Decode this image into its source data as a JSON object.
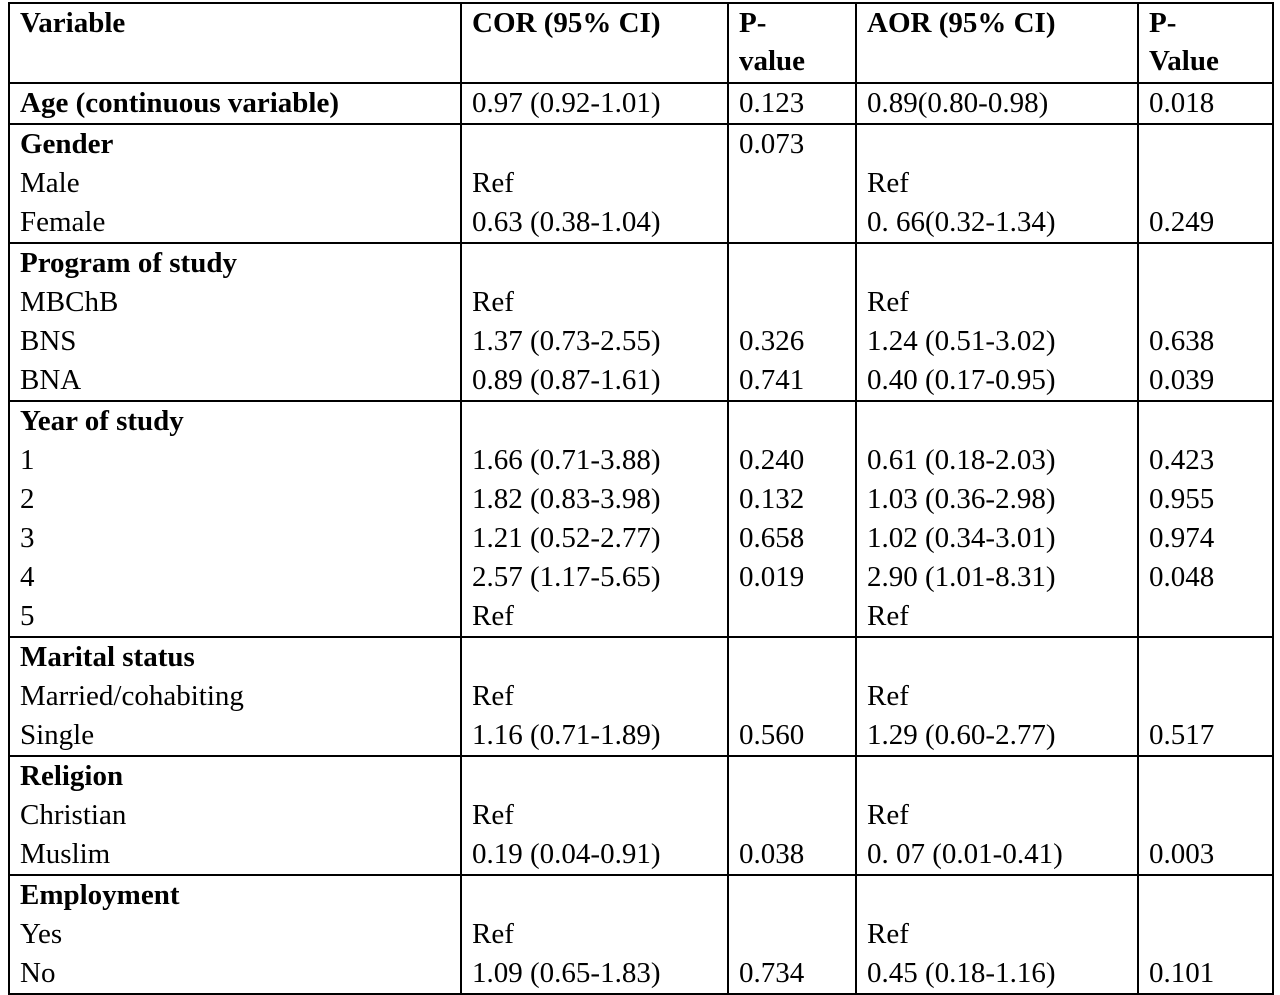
{
  "table": {
    "header": [
      "Variable",
      "COR (95% CI)",
      "P-value",
      "AOR (95% CI)",
      "P-Value"
    ],
    "groups": [
      [
        [
          "Age (continuous variable)",
          "0.97 (0.92-1.01)",
          "0.123",
          "0.89(0.80-0.98)",
          "0.018"
        ]
      ],
      [
        [
          "Gender",
          null,
          "0.073",
          null,
          null
        ],
        [
          "Male",
          "Ref",
          null,
          "Ref",
          null
        ],
        [
          "Female",
          "0.63 (0.38-1.04)",
          null,
          "0. 66(0.32-1.34)",
          "0.249"
        ]
      ],
      [
        [
          "Program of study",
          null,
          null,
          null,
          null
        ],
        [
          "MBChB",
          "Ref",
          null,
          "Ref",
          null
        ],
        [
          "BNS",
          "1.37 (0.73-2.55)",
          "0.326",
          "1.24 (0.51-3.02)",
          "0.638"
        ],
        [
          "BNA",
          "0.89 (0.87-1.61)",
          "0.741",
          "0.40 (0.17-0.95)",
          "0.039"
        ]
      ],
      [
        [
          "Year of study",
          null,
          null,
          null,
          null
        ],
        [
          "1",
          "1.66 (0.71-3.88)",
          "0.240",
          "0.61 (0.18-2.03)",
          "0.423"
        ],
        [
          "2",
          "1.82 (0.83-3.98)",
          "0.132",
          "1.03 (0.36-2.98)",
          "0.955"
        ],
        [
          "3",
          "1.21 (0.52-2.77)",
          "0.658",
          "1.02 (0.34-3.01)",
          "0.974"
        ],
        [
          "4",
          "2.57 (1.17-5.65)",
          "0.019",
          "2.90 (1.01-8.31)",
          "0.048"
        ],
        [
          "5",
          "Ref",
          null,
          "Ref",
          null
        ]
      ],
      [
        [
          "Marital status",
          null,
          null,
          null,
          null
        ],
        [
          "Married/cohabiting",
          "Ref",
          null,
          "Ref",
          null
        ],
        [
          "Single",
          "1.16 (0.71-1.89)",
          "0.560",
          "1.29 (0.60-2.77)",
          "0.517"
        ]
      ],
      [
        [
          "Religion",
          null,
          null,
          null,
          null
        ],
        [
          "Christian",
          "Ref",
          null,
          "Ref",
          null
        ],
        [
          "Muslim",
          "0.19 (0.04-0.91)",
          "0.038",
          "0. 07 (0.01-0.41)",
          "0.003"
        ]
      ],
      [
        [
          "Employment",
          null,
          null,
          null,
          null
        ],
        [
          "Yes",
          "Ref",
          null,
          "Ref",
          null
        ],
        [
          "No",
          "1.09 (0.65-1.83)",
          "0.734",
          "0.45 (0.18-1.16)",
          "0.101"
        ]
      ]
    ]
  }
}
